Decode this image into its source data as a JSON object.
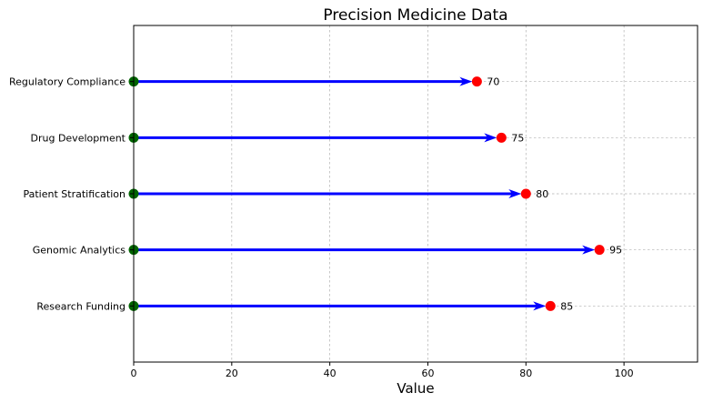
{
  "chart_data": {
    "type": "bar",
    "title": "Precision Medicine Data",
    "xlabel": "Value",
    "ylabel": "",
    "xlim": [
      0,
      115
    ],
    "xticks": [
      0,
      20,
      40,
      60,
      80,
      100
    ],
    "grid": true,
    "categories": [
      "Research Funding",
      "Genomic Analytics",
      "Patient Stratification",
      "Drug Development",
      "Regulatory Compliance"
    ],
    "series": [
      {
        "start": [
          0,
          0,
          0,
          0,
          0
        ],
        "values": [
          85,
          95,
          80,
          75,
          70
        ]
      }
    ],
    "colors": {
      "arrow": "#0000ff",
      "start_marker": "#006400",
      "end_marker": "#ff0000"
    }
  }
}
